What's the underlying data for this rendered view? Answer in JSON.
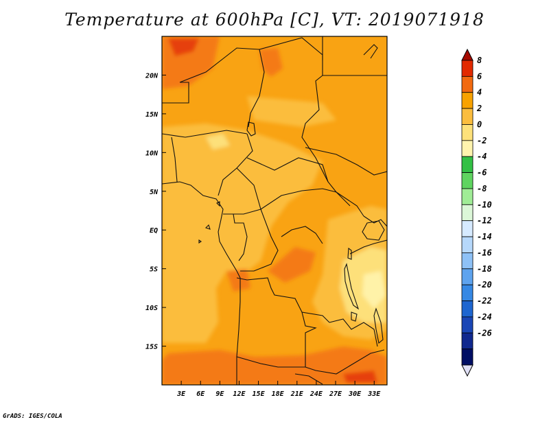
{
  "title": "Temperature at 600hPa [C], VT: 2019071918",
  "credit": "GrADS: IGES/COLA",
  "map": {
    "variable": "Temperature",
    "level": "600hPa",
    "units": "C",
    "lon_range": [
      0,
      35
    ],
    "lat_range": [
      -20,
      25
    ],
    "lon_ticks": [
      "3E",
      "6E",
      "9E",
      "12E",
      "15E",
      "18E",
      "21E",
      "24E",
      "27E",
      "30E",
      "33E"
    ],
    "lat_ticks": [
      "20N",
      "15N",
      "10N",
      "5N",
      "EQ",
      "5S",
      "10S",
      "15S"
    ]
  },
  "colorbar": {
    "levels": [
      "8",
      "6",
      "4",
      "2",
      "0",
      "-2",
      "-4",
      "-6",
      "-8",
      "-10",
      "-12",
      "-14",
      "-16",
      "-18",
      "-20",
      "-22",
      "-24",
      "-26"
    ],
    "colors": [
      "#a50a00",
      "#e22a00",
      "#f26a10",
      "#f8a200",
      "#fbbd3e",
      "#fde17a",
      "#fff4ae",
      "#33c045",
      "#5fd460",
      "#a0ec96",
      "#dcf7d8",
      "#d6eaff",
      "#b6d8fb",
      "#8ec1f6",
      "#5ea3ee",
      "#3688e4",
      "#1e66d0",
      "#1a46b6",
      "#10288e",
      "#000e64",
      "#e0e0f6"
    ]
  },
  "colors": {
    "warm_4_6": "#f47a12",
    "warm_2_4": "#f9a313",
    "warm_0_2": "#fbbd3e",
    "cool_m2_0": "#fde07a",
    "cool_m4_m2": "#fff2a8"
  }
}
